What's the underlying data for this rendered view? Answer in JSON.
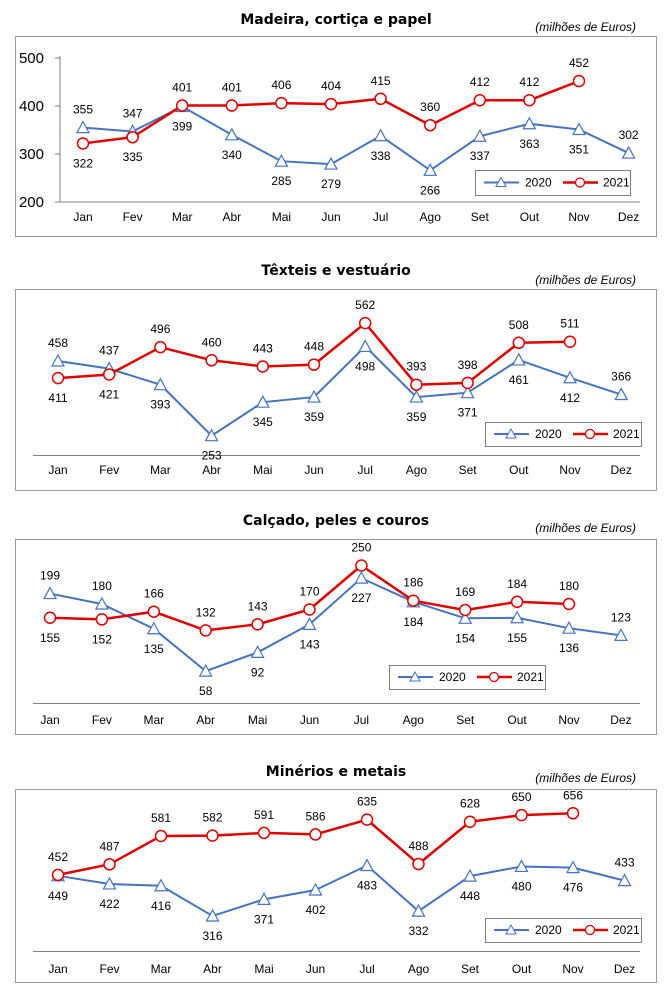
{
  "units_label": "(milhões de Euros)",
  "months": [
    "Jan",
    "Fev",
    "Mar",
    "Abr",
    "Mai",
    "Jun",
    "Jul",
    "Ago",
    "Set",
    "Out",
    "Nov",
    "Dez"
  ],
  "colors": {
    "series_2020": "#4472C4",
    "series_2021": "#E00000"
  },
  "chart_data": [
    {
      "type": "line",
      "title": "Madeira, cortiça e papel",
      "categories": [
        "Jan",
        "Fev",
        "Mar",
        "Abr",
        "Mai",
        "Jun",
        "Jul",
        "Ago",
        "Set",
        "Out",
        "Nov",
        "Dez"
      ],
      "ylim": [
        200,
        500
      ],
      "yticks": [
        200,
        300,
        400,
        500
      ],
      "show_yaxis": true,
      "legend_position": "bottom-right",
      "series": [
        {
          "name": "2020",
          "values": [
            355,
            347,
            399,
            340,
            285,
            279,
            338,
            266,
            337,
            363,
            351,
            302
          ]
        },
        {
          "name": "2021",
          "values": [
            322,
            335,
            401,
            401,
            406,
            404,
            415,
            360,
            412,
            412,
            452,
            null
          ]
        }
      ]
    },
    {
      "type": "line",
      "title": "Têxteis e vestuário",
      "categories": [
        "Jan",
        "Fev",
        "Mar",
        "Abr",
        "Mai",
        "Jun",
        "Jul",
        "Ago",
        "Set",
        "Out",
        "Nov",
        "Dez"
      ],
      "ylim": [
        200,
        620
      ],
      "show_yaxis": false,
      "legend_position": "bottom-right",
      "series": [
        {
          "name": "2020",
          "values": [
            458,
            437,
            393,
            253,
            345,
            359,
            498,
            359,
            371,
            461,
            412,
            366
          ]
        },
        {
          "name": "2021",
          "values": [
            411,
            421,
            496,
            460,
            443,
            448,
            562,
            393,
            398,
            508,
            511,
            null
          ]
        }
      ]
    },
    {
      "type": "line",
      "title": "Calçado, peles e couros",
      "categories": [
        "Jan",
        "Fev",
        "Mar",
        "Abr",
        "Mai",
        "Jun",
        "Jul",
        "Ago",
        "Set",
        "Out",
        "Nov",
        "Dez"
      ],
      "ylim": [
        0,
        280
      ],
      "show_yaxis": false,
      "legend_position": "bottom-right",
      "series": [
        {
          "name": "2020",
          "values": [
            199,
            180,
            135,
            58,
            92,
            143,
            227,
            184,
            154,
            155,
            136,
            123
          ]
        },
        {
          "name": "2021",
          "values": [
            155,
            152,
            166,
            132,
            143,
            170,
            250,
            186,
            169,
            184,
            180,
            null
          ]
        }
      ]
    },
    {
      "type": "line",
      "title": "Minérios e metais",
      "categories": [
        "Jan",
        "Fev",
        "Mar",
        "Abr",
        "Mai",
        "Jun",
        "Jul",
        "Ago",
        "Set",
        "Out",
        "Nov",
        "Dez"
      ],
      "ylim": [
        200,
        700
      ],
      "show_yaxis": false,
      "legend_position": "bottom-right",
      "series": [
        {
          "name": "2020",
          "values": [
            449,
            422,
            416,
            316,
            371,
            402,
            483,
            332,
            448,
            480,
            476,
            433
          ]
        },
        {
          "name": "2021",
          "values": [
            452,
            487,
            581,
            582,
            591,
            586,
            635,
            488,
            628,
            650,
            656,
            null
          ]
        }
      ]
    }
  ]
}
